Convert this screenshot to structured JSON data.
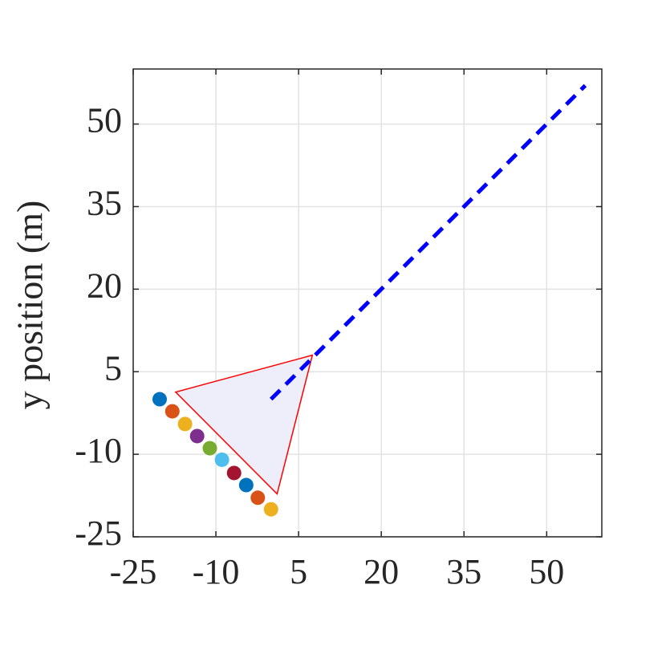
{
  "chart_data": {
    "type": "scatter",
    "ylabel": "y position (m)",
    "xlim": [
      -25,
      60
    ],
    "ylim": [
      -25,
      60
    ],
    "xticks": [
      -25,
      -10,
      5,
      20,
      35,
      50
    ],
    "yticks": [
      -25,
      -10,
      5,
      20,
      35,
      50
    ],
    "grid": true,
    "points": {
      "x": [
        -20.2,
        -17.9,
        -15.6,
        -13.4,
        -11.1,
        -8.9,
        -6.7,
        -4.5,
        -2.4,
        0
      ],
      "y": [
        0,
        -2.2,
        -4.5,
        -6.7,
        -8.9,
        -11,
        -13.4,
        -15.6,
        -17.9,
        -20
      ],
      "colors": [
        "#0072BD",
        "#D95319",
        "#EDB120",
        "#7E2F8E",
        "#77AC30",
        "#4DBEEE",
        "#A2142F",
        "#0072BD",
        "#D95319",
        "#EDB120"
      ]
    },
    "line": {
      "x": [
        0,
        57
      ],
      "y": [
        0,
        57
      ],
      "color": "#0000ff",
      "dashed": true
    },
    "polygon": {
      "x": [
        7.5,
        -17.3,
        1.1
      ],
      "y": [
        8,
        1.3,
        -17.2
      ],
      "fill": "#eeeefb",
      "stroke": "#ff0000"
    }
  }
}
